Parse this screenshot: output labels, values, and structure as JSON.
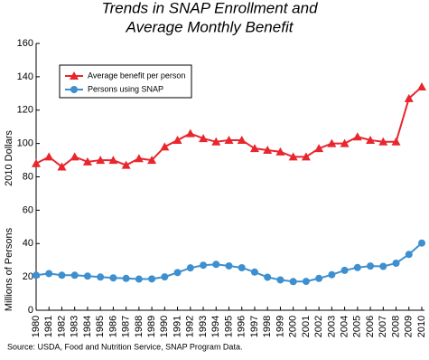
{
  "chart_data": {
    "type": "line",
    "title": "Trends in SNAP Enrollment and Average Monthly Benefit",
    "y_label_upper": "2010 Dollars",
    "y_label_lower": "Millions of Persons",
    "source": "Source: USDA, Food and Nutrition Service, SNAP Program Data.",
    "categories": [
      "1980",
      "1981",
      "1982",
      "1983",
      "1984",
      "1985",
      "1986",
      "1987",
      "1988",
      "1989",
      "1990",
      "1991",
      "1992",
      "1993",
      "1994",
      "1995",
      "1996",
      "1997",
      "1998",
      "1999",
      "2000",
      "2001",
      "2002",
      "2003",
      "2004",
      "2005",
      "2006",
      "2007",
      "2008",
      "2009",
      "2010"
    ],
    "series": [
      {
        "name": "Average benefit per person",
        "color": "#e8262d",
        "marker": "triangle",
        "values": [
          88,
          92,
          86,
          92,
          89,
          90,
          90,
          87,
          91,
          90,
          98,
          102,
          106,
          103,
          101,
          102,
          102,
          97,
          96,
          95,
          92,
          92,
          97,
          100,
          100,
          104,
          102,
          101,
          101,
          127,
          134
        ]
      },
      {
        "name": "Persons using SNAP",
        "color": "#3d8fcf",
        "marker": "circle",
        "values": [
          21,
          22,
          21,
          21,
          20.5,
          19.9,
          19.4,
          19.1,
          18.7,
          18.8,
          20,
          22.6,
          25.4,
          27,
          27.5,
          26.6,
          25.5,
          22.9,
          19.8,
          18.2,
          17.2,
          17.3,
          19.1,
          21.3,
          23.9,
          25.6,
          26.5,
          26.3,
          28.2,
          33.5,
          40.3
        ]
      }
    ],
    "ylim": [
      0,
      160
    ],
    "yticks": [
      0,
      20,
      40,
      60,
      80,
      100,
      120,
      140,
      160
    ],
    "legend": "upper-left"
  }
}
